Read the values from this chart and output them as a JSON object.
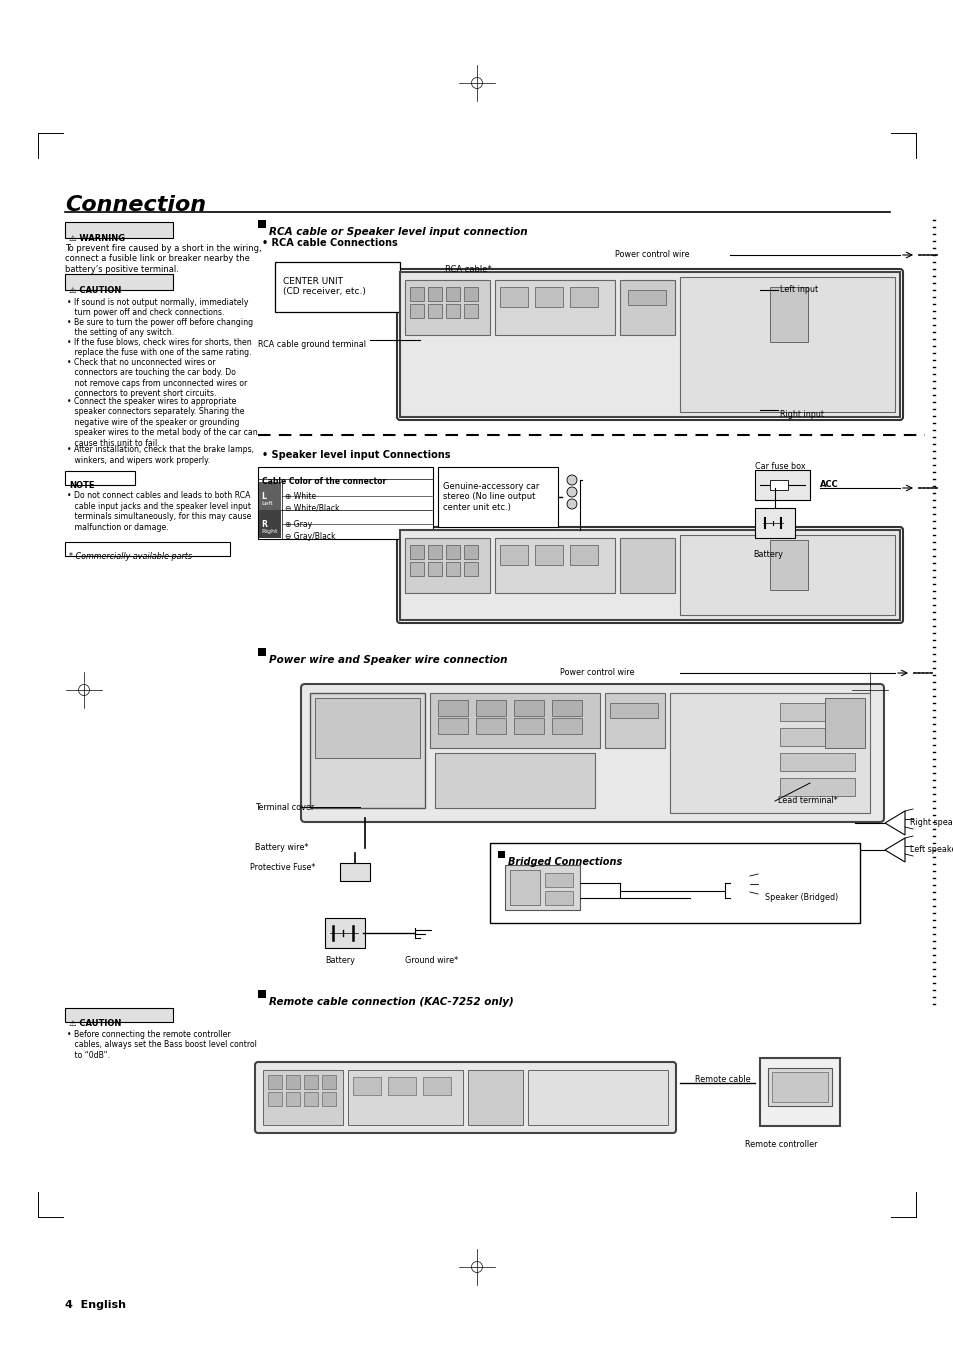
{
  "background_color": "#ffffff",
  "figsize": [
    9.54,
    13.5
  ],
  "dpi": 100,
  "title": "Connection",
  "page_footer": "4  English",
  "warning_text": "To prevent fire caused by a short in the wiring,\nconnect a fusible link or breaker nearby the\nbattery’s positive terminal.",
  "caution_items": [
    "If sound is not output normally, immediately\n   turn power off and check connections.",
    "Be sure to turn the power off before changing\n   the setting of any switch.",
    "If the fuse blows, check wires for shorts, then\n   replace the fuse with one of the same rating.",
    "Check that no unconnected wires or\n   connectors are touching the car body. Do\n   not remove caps from unconnected wires or\n   connectors to prevent short circuits.",
    "Connect the speaker wires to appropriate\n   speaker connectors separately. Sharing the\n   negative wire of the speaker or grounding\n   speaker wires to the metal body of the car can\n   cause this unit to fail.",
    "After installation, check that the brake lamps,\n   winkers, and wipers work properly."
  ],
  "note_items": [
    "Do not connect cables and leads to both RCA\n   cable input jacks and the speaker level input\n   terminals simultaneously, for this may cause\n   malfunction or damage."
  ],
  "commercially_available": "* Commercially available parts",
  "rca_section_title": "RCA cable or Speaker level input connection",
  "rca_subsection": "RCA cable Connections",
  "speaker_subsection": "Speaker level input Connections",
  "power_section_title": "Power wire and Speaker wire connection",
  "remote_section_title": "Remote cable connection (KAC-7252 only)",
  "remote_caution_items": [
    "Before connecting the remote controller\n   cables, always set the Bass boost level control\n   to “0dB”."
  ],
  "lbl_power_ctrl_wire": "Power control wire",
  "lbl_center_unit": "CENTER UNIT\n(CD receiver, etc.)",
  "lbl_rca_cable": "RCA cable*",
  "lbl_rca_ground": "RCA cable ground terminal",
  "lbl_left_input": "Left input",
  "lbl_right_input": "Right input",
  "lbl_car_fuse_box": "Car fuse box",
  "lbl_acc": "ACC",
  "lbl_battery_spkr": "Battery",
  "lbl_genuine_stereo": "Genuine-accessory car\nstereo (No line output\ncenter unit etc.)",
  "lbl_terminal_cover": "Terminal cover",
  "lbl_battery_wire": "Battery wire*",
  "lbl_protective_fuse": "Protective Fuse*",
  "lbl_battery_pw": "Battery",
  "lbl_ground_wire": "Ground wire*",
  "lbl_lead_terminal": "Lead terminal*",
  "lbl_right_speaker": "Right speaker",
  "lbl_left_speaker": "Left speaker",
  "lbl_bridged_title": "Bridged Connections",
  "lbl_speaker_bridged": "Speaker (Bridged)",
  "lbl_remote_cable": "Remote cable",
  "lbl_remote_ctrl": "Remote controller",
  "cable_color_title": "Cable Color of the connector",
  "cable_color_rows": [
    [
      "L",
      "Left",
      "+White",
      "-White/Black"
    ],
    [
      "R",
      "Right",
      "+Gray",
      "-Gray/Black"
    ]
  ]
}
